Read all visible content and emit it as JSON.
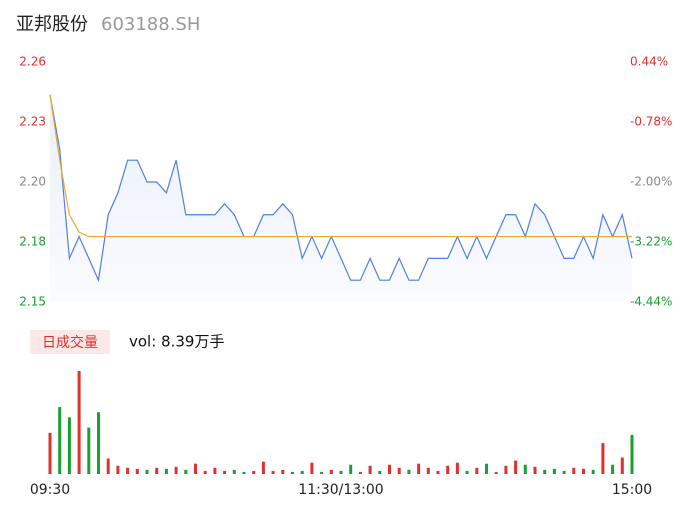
{
  "chart_data": {
    "type": "line",
    "title": "亚邦股份",
    "subtitle": "603188.SH",
    "volume_label": "日成交量",
    "volume_text": "vol: 8.39万手",
    "categories": [
      "09:30",
      null,
      null,
      null,
      null,
      null,
      null,
      null,
      null,
      null,
      null,
      null,
      null,
      null,
      null,
      null,
      null,
      null,
      null,
      null,
      null,
      null,
      null,
      null,
      null,
      null,
      null,
      null,
      null,
      null,
      "11:30/13:00",
      null,
      null,
      null,
      null,
      null,
      null,
      null,
      null,
      null,
      null,
      null,
      null,
      null,
      null,
      null,
      null,
      null,
      null,
      null,
      null,
      null,
      null,
      null,
      null,
      null,
      null,
      null,
      null,
      null,
      "15:00"
    ],
    "series": [
      {
        "name": "price",
        "color": "#4f7fe0",
        "values": [
          2.245,
          2.22,
          2.17,
          2.18,
          2.17,
          2.16,
          2.19,
          2.2,
          2.215,
          2.215,
          2.205,
          2.205,
          2.2,
          2.215,
          2.19,
          2.19,
          2.19,
          2.19,
          2.195,
          2.19,
          2.18,
          2.18,
          2.19,
          2.19,
          2.195,
          2.19,
          2.17,
          2.18,
          2.17,
          2.18,
          2.17,
          2.16,
          2.16,
          2.17,
          2.16,
          2.16,
          2.17,
          2.16,
          2.16,
          2.17,
          2.17,
          2.17,
          2.18,
          2.17,
          2.18,
          2.17,
          2.18,
          2.19,
          2.19,
          2.18,
          2.195,
          2.19,
          2.18,
          2.17,
          2.17,
          2.18,
          2.17,
          2.19,
          2.18,
          2.19,
          2.17
        ]
      },
      {
        "name": "average",
        "color": "#f0a830",
        "values": [
          2.245,
          2.215,
          2.19,
          2.182,
          2.18,
          2.18,
          2.18,
          2.18,
          2.18,
          2.18,
          2.18,
          2.18,
          2.18,
          2.18,
          2.18,
          2.18,
          2.18,
          2.18,
          2.18,
          2.18,
          2.18,
          2.18,
          2.18,
          2.18,
          2.18,
          2.18,
          2.18,
          2.18,
          2.18,
          2.18,
          2.18,
          2.18,
          2.18,
          2.18,
          2.18,
          2.18,
          2.18,
          2.18,
          2.18,
          2.18,
          2.18,
          2.18,
          2.18,
          2.18,
          2.18,
          2.18,
          2.18,
          2.18,
          2.18,
          2.18,
          2.18,
          2.18,
          2.18,
          2.18,
          2.18,
          2.18,
          2.18,
          2.18,
          2.18,
          2.18,
          2.18
        ]
      }
    ],
    "volume": [
      40,
      65,
      55,
      100,
      45,
      60,
      15,
      8,
      6,
      5,
      4,
      6,
      5,
      7,
      4,
      10,
      3,
      6,
      3,
      4,
      2,
      3,
      12,
      3,
      4,
      2,
      3,
      11,
      2,
      4,
      3,
      9,
      2,
      8,
      3,
      9,
      6,
      4,
      10,
      6,
      3,
      8,
      11,
      3,
      6,
      10,
      2,
      8,
      13,
      9,
      7,
      4,
      5,
      3,
      6,
      5,
      4,
      30,
      9,
      16,
      38
    ],
    "ylim": [
      2.15,
      2.26
    ],
    "yticks": [
      {
        "value": 2.26,
        "label": "2.26",
        "color": "#e0312c"
      },
      {
        "value": 2.2325,
        "label": "2.23",
        "color": "#e0312c"
      },
      {
        "value": 2.205,
        "label": "2.20",
        "color": "#888888"
      },
      {
        "value": 2.1775,
        "label": "2.18",
        "color": "#18a030"
      },
      {
        "value": 2.15,
        "label": "2.15",
        "color": "#18a030"
      }
    ],
    "y2lim": [
      -4.44,
      0.44
    ],
    "y2ticks": [
      {
        "value": 0.44,
        "label": "0.44%",
        "color": "#e0312c"
      },
      {
        "value": -0.78,
        "label": "-0.78%",
        "color": "#e0312c"
      },
      {
        "value": -2.0,
        "label": "-2.00%",
        "color": "#888888"
      },
      {
        "value": -3.22,
        "label": "-3.22%",
        "color": "#18a030"
      },
      {
        "value": -4.44,
        "label": "-4.44%",
        "color": "#18a030"
      }
    ],
    "up_color": "#e0312c",
    "down_color": "#18a030"
  }
}
